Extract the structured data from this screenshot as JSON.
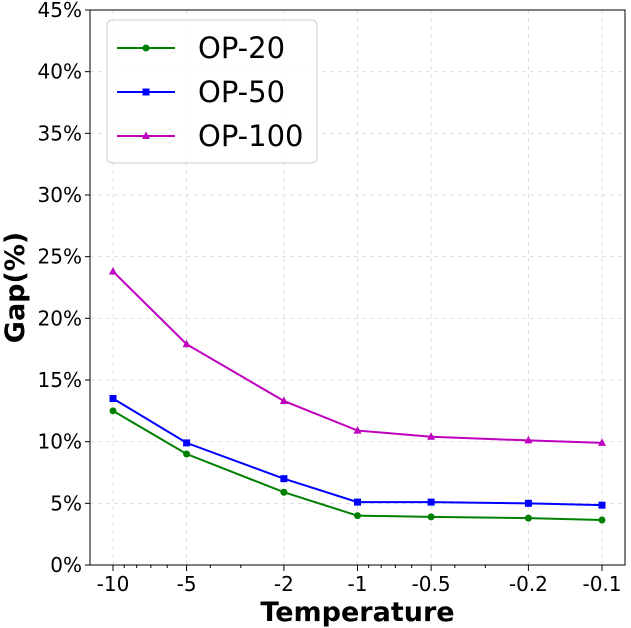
{
  "chart_data": {
    "type": "line",
    "title": "",
    "xlabel": "Temperature",
    "ylabel": "Gap(%)",
    "categories": [
      "-10",
      "-5",
      "-2",
      "-1",
      "-0.5",
      "-0.2",
      "-0.1"
    ],
    "ylim": [
      0,
      45
    ],
    "yticks": [
      0,
      5,
      10,
      15,
      20,
      25,
      30,
      35,
      40,
      45
    ],
    "ytick_labels": [
      "0%",
      "5%",
      "10%",
      "15%",
      "20%",
      "25%",
      "30%",
      "35%",
      "40%",
      "45%"
    ],
    "grid": true,
    "legend_location": "upper-left",
    "series": [
      {
        "name": "OP-20",
        "color": "#008000",
        "marker": "circle",
        "values": [
          12.5,
          9.0,
          5.9,
          4.0,
          3.9,
          3.8,
          3.65
        ]
      },
      {
        "name": "OP-50",
        "color": "#0000ff",
        "marker": "square",
        "values": [
          13.5,
          9.9,
          7.0,
          5.1,
          5.1,
          5.0,
          4.85
        ]
      },
      {
        "name": "OP-100",
        "color": "#bf00bf",
        "marker": "triangle",
        "values": [
          23.8,
          17.9,
          13.3,
          10.9,
          10.4,
          10.1,
          9.9
        ]
      }
    ]
  }
}
